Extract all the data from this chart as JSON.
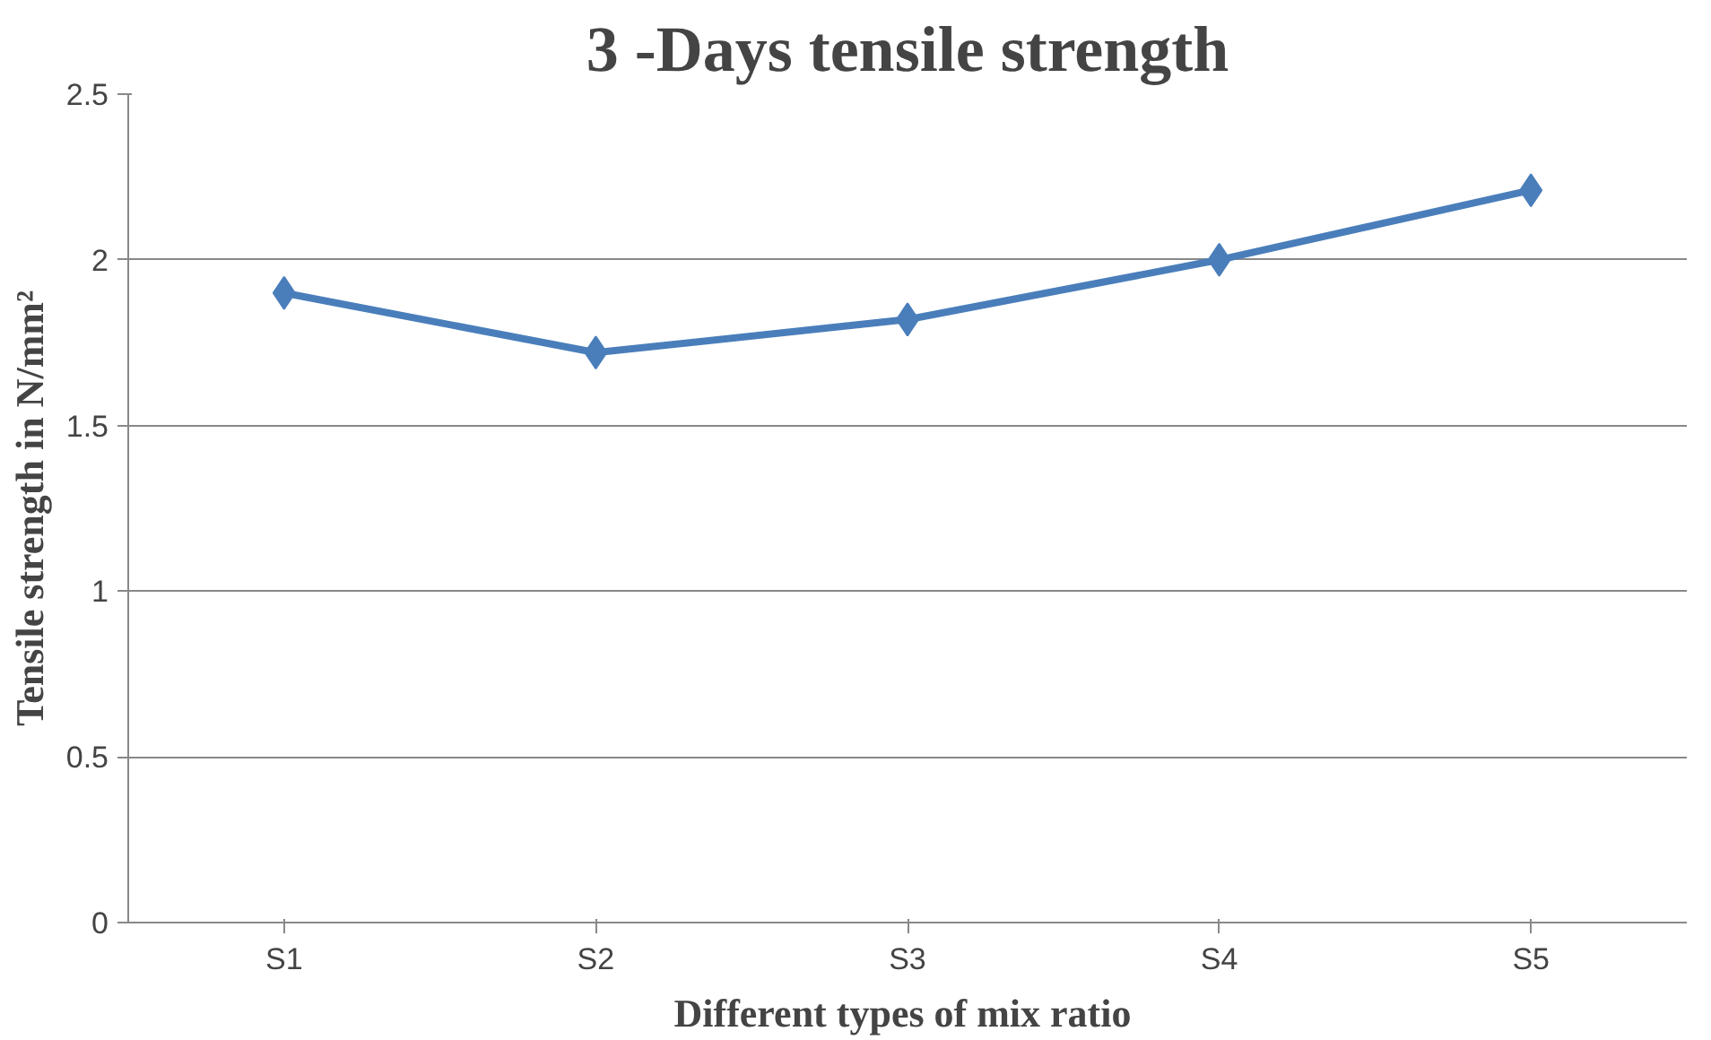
{
  "chart_data": {
    "type": "line",
    "title": "3 -Days tensile strength",
    "xlabel": "Different  types of mix ratio",
    "ylabel": "Tensile strength in N/mm²",
    "categories": [
      "S1",
      "S2",
      "S3",
      "S4",
      "S5"
    ],
    "series": [
      {
        "color": "#4a7ebb",
        "values": [
          1.9,
          1.72,
          1.82,
          2.0,
          2.21
        ]
      }
    ],
    "ylim": [
      0,
      2.5
    ],
    "yticks": [
      0,
      0.5,
      1,
      1.5,
      2,
      2.5
    ],
    "grid": "y",
    "marker": "diamond",
    "line_style": "solid"
  }
}
